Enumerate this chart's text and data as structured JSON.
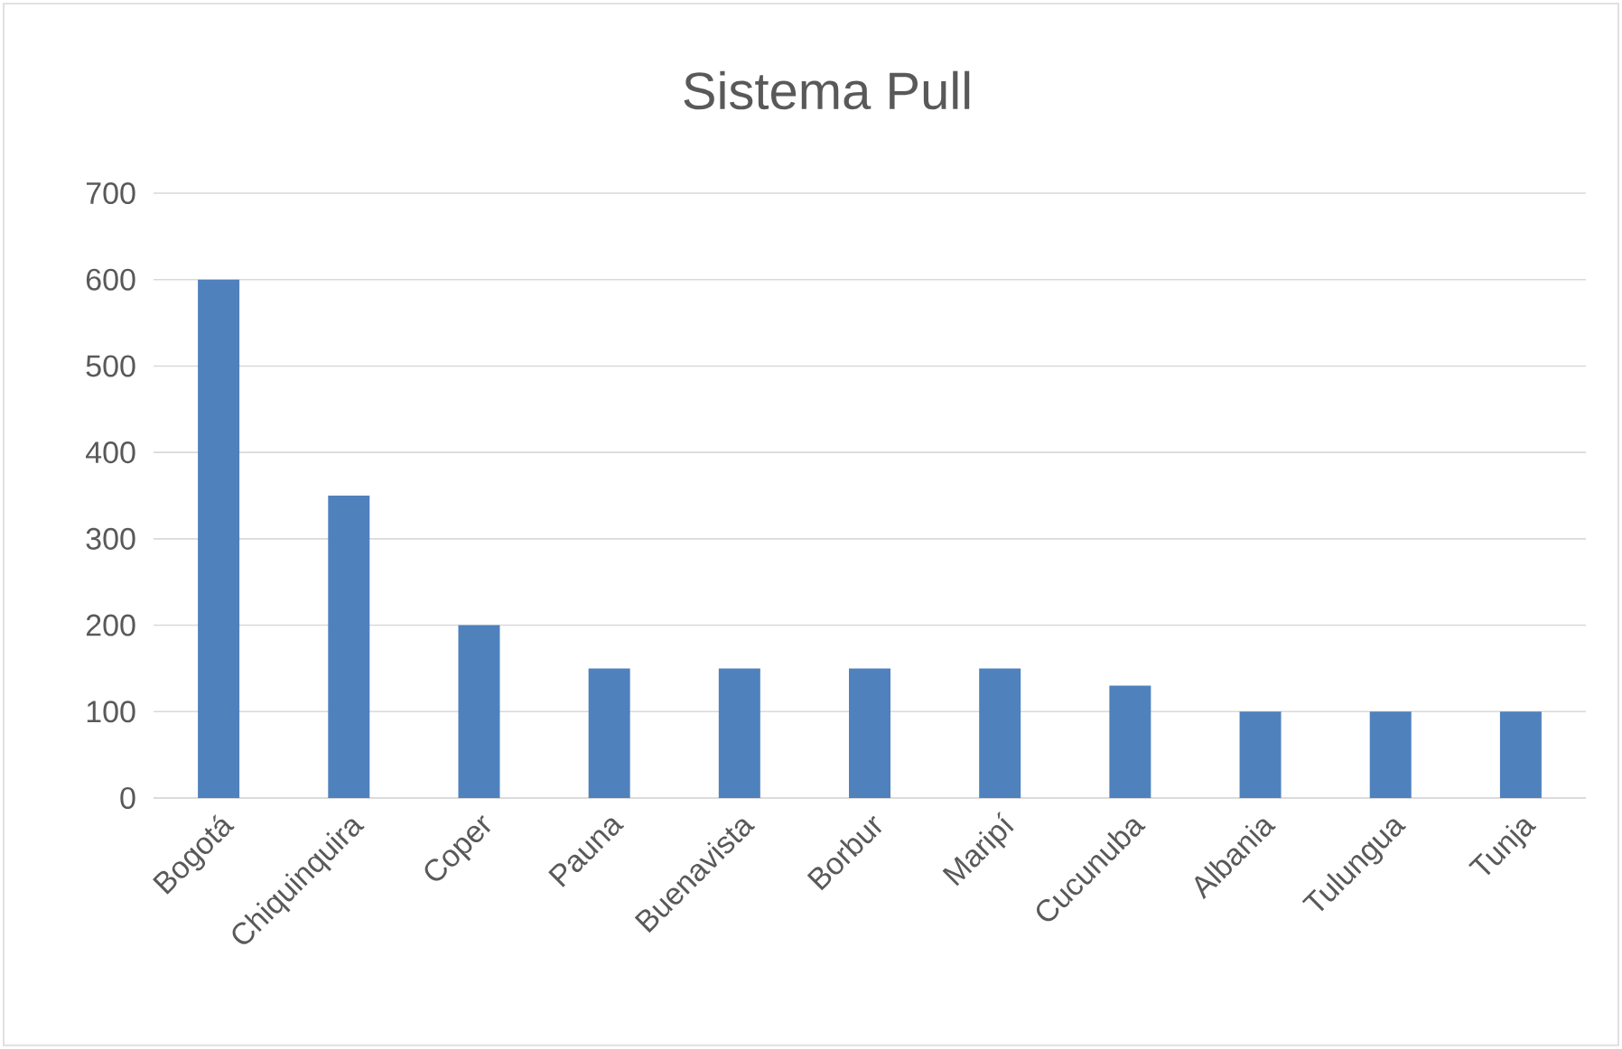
{
  "chart_data": {
    "type": "bar",
    "title": "Sistema Pull",
    "categories": [
      "Bogotá",
      "Chiquinquira",
      "Coper",
      "Pauna",
      "Buenavista",
      "Borbur",
      "Maripí",
      "Cucunuba",
      "Albania",
      "Tulungua",
      "Tunja"
    ],
    "values": [
      600,
      350,
      200,
      150,
      150,
      150,
      150,
      130,
      100,
      100,
      100
    ],
    "color": "#4f81bd",
    "ylim": [
      0,
      700
    ],
    "yticks": [
      0,
      100,
      200,
      300,
      400,
      500,
      600,
      700
    ],
    "grid": "y"
  }
}
